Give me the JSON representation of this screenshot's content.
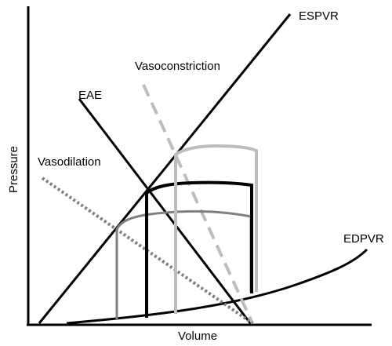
{
  "labels": {
    "espvr": "ESPVR",
    "vasoconstriction": "Vasoconstriction",
    "eae": "EAE",
    "vasodilation": "Vasodilation",
    "edpvr": "EDPVR"
  },
  "axes": {
    "x_label": "Volume",
    "y_label": "Pressure"
  },
  "colors": {
    "axis": "#000000",
    "baseline_loop": "#000000",
    "vasoconstriction_loop": "#bdbdbd",
    "vasodilation_loop": "#808080",
    "vasoconstriction_line": "#bdbdbd",
    "vasodilation_line": "#808080"
  }
}
